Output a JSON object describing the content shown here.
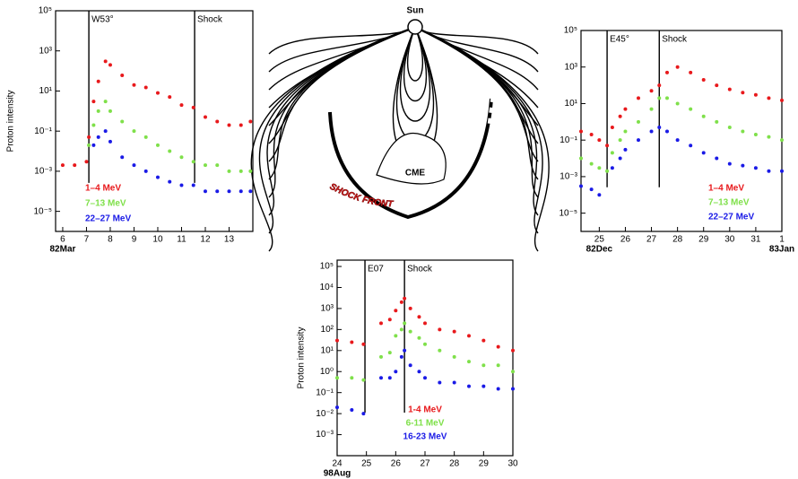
{
  "chart_data": [
    {
      "type": "scatter",
      "y_label": "Proton intensity",
      "log_y": true,
      "xlim": [
        5.7,
        14
      ],
      "xticks": [
        6,
        7,
        8,
        9,
        10,
        11,
        12,
        13
      ],
      "x_sublabels": [
        {
          "value": 6,
          "label": "82Mar"
        }
      ],
      "ylim": [
        1e-06,
        100000
      ],
      "yticks": [
        {
          "value": 100000,
          "label": "10⁵"
        },
        {
          "value": 1000,
          "label": "10³"
        },
        {
          "value": 10,
          "label": "10¹"
        },
        {
          "value": 0.1,
          "label": "10⁻¹"
        },
        {
          "value": 0.001,
          "label": "10⁻³"
        },
        {
          "value": 1e-05,
          "label": "10⁻⁵"
        }
      ],
      "markers": [
        {
          "x": 7.1,
          "label": "W53°"
        },
        {
          "x": 11.55,
          "label": "Shock"
        }
      ],
      "x": [
        6,
        6.5,
        7,
        7.1,
        7.3,
        7.5,
        7.8,
        8,
        8.5,
        9,
        9.5,
        10,
        10.5,
        11,
        11.5,
        12,
        12.5,
        13,
        13.5,
        13.9
      ],
      "series": [
        {
          "name": "1–4 MeV",
          "color": "#e8191c",
          "values": [
            0.002,
            0.002,
            0.003,
            0.05,
            3,
            30,
            300,
            200,
            60,
            20,
            15,
            8,
            5,
            2,
            1.5,
            0.5,
            0.3,
            0.2,
            0.2,
            0.3
          ]
        },
        {
          "name": "7–13 MeV",
          "color": "#7fe04a",
          "values": [
            null,
            null,
            null,
            0.02,
            0.2,
            1,
            3,
            1,
            0.3,
            0.1,
            0.05,
            0.02,
            0.01,
            0.005,
            0.003,
            0.002,
            0.002,
            0.001,
            0.001,
            0.001
          ]
        },
        {
          "name": "22–27 MeV",
          "color": "#1a1ae6",
          "values": [
            null,
            null,
            null,
            null,
            0.02,
            0.05,
            0.1,
            0.03,
            0.005,
            0.002,
            0.001,
            0.0005,
            0.0003,
            0.0002,
            0.0002,
            0.0001,
            0.0001,
            0.0001,
            0.0001,
            0.0001
          ]
        }
      ]
    },
    {
      "type": "scatter",
      "log_y": true,
      "xlim": [
        24.3,
        32
      ],
      "xticks": [
        25,
        26,
        27,
        28,
        29,
        30,
        31,
        {
          "value": 32,
          "label": "1"
        }
      ],
      "x_sublabels": [
        {
          "value": 25,
          "label": "82Dec"
        },
        {
          "value": 32,
          "label": "83Jan"
        }
      ],
      "ylim": [
        1e-06,
        100000
      ],
      "yticks": [
        {
          "value": 100000,
          "label": "10⁵"
        },
        {
          "value": 1000,
          "label": "10³"
        },
        {
          "value": 10,
          "label": "10¹"
        },
        {
          "value": 0.1,
          "label": "10⁻¹"
        },
        {
          "value": 0.001,
          "label": "10⁻³"
        },
        {
          "value": 1e-05,
          "label": "10⁻⁵"
        }
      ],
      "markers": [
        {
          "x": 25.3,
          "label": "E45°"
        },
        {
          "x": 27.3,
          "label": "Shock"
        }
      ],
      "x": [
        24.3,
        24.7,
        25,
        25.3,
        25.5,
        25.8,
        26,
        26.5,
        27,
        27.3,
        27.6,
        28,
        28.5,
        29,
        29.5,
        30,
        30.5,
        31,
        31.5,
        32
      ],
      "series": [
        {
          "name": "1–4 MeV",
          "color": "#e8191c",
          "values": [
            0.3,
            0.2,
            0.1,
            0.05,
            0.5,
            2,
            5,
            20,
            50,
            100,
            500,
            1000,
            500,
            200,
            100,
            60,
            40,
            30,
            20,
            15
          ]
        },
        {
          "name": "7–13 MeV",
          "color": "#7fe04a",
          "values": [
            0.01,
            0.005,
            0.003,
            0.002,
            0.02,
            0.1,
            0.3,
            1,
            5,
            20,
            20,
            10,
            5,
            2,
            1,
            0.5,
            0.3,
            0.2,
            0.15,
            0.1
          ]
        },
        {
          "name": "22–27 MeV",
          "color": "#1a1ae6",
          "values": [
            0.0003,
            0.0002,
            0.0001,
            null,
            0.003,
            0.01,
            0.03,
            0.1,
            0.3,
            0.5,
            0.3,
            0.1,
            0.05,
            0.02,
            0.01,
            0.005,
            0.004,
            0.003,
            0.002,
            0.002
          ]
        }
      ]
    },
    {
      "type": "scatter",
      "y_label": "Proton intensity",
      "log_y": true,
      "xlim": [
        24,
        30
      ],
      "xticks": [
        24,
        25,
        26,
        27,
        28,
        29,
        30
      ],
      "x_sublabels": [
        {
          "value": 24,
          "label": "98Aug"
        }
      ],
      "ylim": [
        0.0001,
        200000
      ],
      "yticks": [
        {
          "value": 100000,
          "label": "10⁵"
        },
        {
          "value": 10000,
          "label": "10⁴"
        },
        {
          "value": 1000,
          "label": "10³"
        },
        {
          "value": 100,
          "label": "10²"
        },
        {
          "value": 10,
          "label": "10¹"
        },
        {
          "value": 1,
          "label": "10⁰"
        },
        {
          "value": 0.1,
          "label": "10⁻¹"
        },
        {
          "value": 0.01,
          "label": "10⁻²"
        },
        {
          "value": 0.001,
          "label": "10⁻³"
        }
      ],
      "markers": [
        {
          "x": 24.95,
          "label": "E07"
        },
        {
          "x": 26.3,
          "label": "Shock"
        }
      ],
      "x": [
        24,
        24.5,
        24.9,
        25.2,
        25.5,
        25.8,
        26,
        26.2,
        26.3,
        26.5,
        26.8,
        27,
        27.5,
        28,
        28.5,
        29,
        29.5,
        30
      ],
      "series": [
        {
          "name": "1-4 MeV",
          "color": "#e8191c",
          "values": [
            30,
            25,
            20,
            null,
            200,
            300,
            800,
            2000,
            3000,
            1000,
            400,
            200,
            100,
            80,
            50,
            30,
            15,
            10
          ]
        },
        {
          "name": "6-11 MeV",
          "color": "#7fe04a",
          "values": [
            0.5,
            0.5,
            0.4,
            null,
            5,
            8,
            50,
            100,
            200,
            80,
            40,
            20,
            10,
            5,
            3,
            2,
            2,
            1
          ]
        },
        {
          "name": "16-23 MeV",
          "color": "#1a1ae6",
          "values": [
            0.02,
            0.015,
            0.01,
            null,
            0.5,
            0.5,
            1,
            5,
            10,
            2,
            1,
            0.5,
            0.3,
            0.3,
            0.2,
            0.2,
            0.15,
            0.15
          ]
        }
      ]
    }
  ],
  "diagram": {
    "sun": "Sun",
    "cme": "CME",
    "shock": "SHOCK FRONT"
  }
}
